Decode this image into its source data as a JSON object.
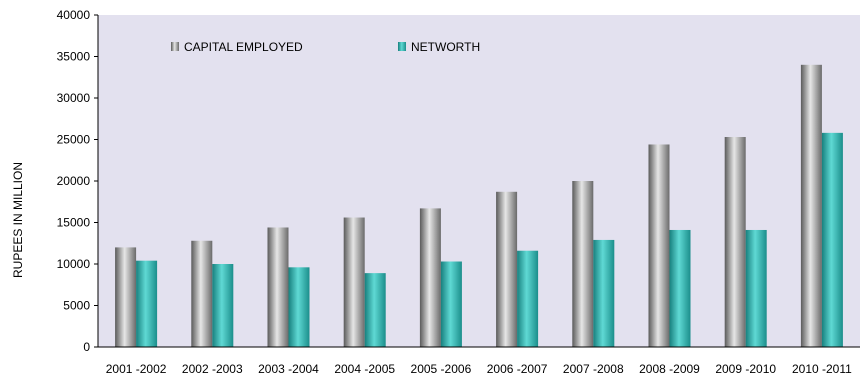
{
  "chart_data": {
    "type": "bar",
    "title": "",
    "xlabel": "",
    "ylabel": "RUPEES IN MILLION",
    "ylim": [
      0,
      40000
    ],
    "yticks": [
      0,
      5000,
      10000,
      15000,
      20000,
      25000,
      30000,
      35000,
      40000
    ],
    "grid": false,
    "legend_position": "top",
    "categories": [
      "2001 -2002",
      "2002 -2003",
      "2003 -2004",
      "2004 -2005",
      "2005 -2006",
      "2006 -2007",
      "2007 -2008",
      "2008 -2009",
      "2009 -2010",
      "2010 -2011"
    ],
    "series": [
      {
        "name": "CAPITAL EMPLOYED",
        "color": "#8c8c8c",
        "values": [
          12000,
          12800,
          14400,
          15600,
          16700,
          18700,
          20000,
          24400,
          25300,
          34000
        ]
      },
      {
        "name": "NETWORTH",
        "color": "#2aa9a6",
        "values": [
          10400,
          10000,
          9600,
          8900,
          10300,
          11600,
          12900,
          14100,
          14100,
          25800
        ]
      }
    ],
    "plot_background": "#e3e1ef"
  }
}
